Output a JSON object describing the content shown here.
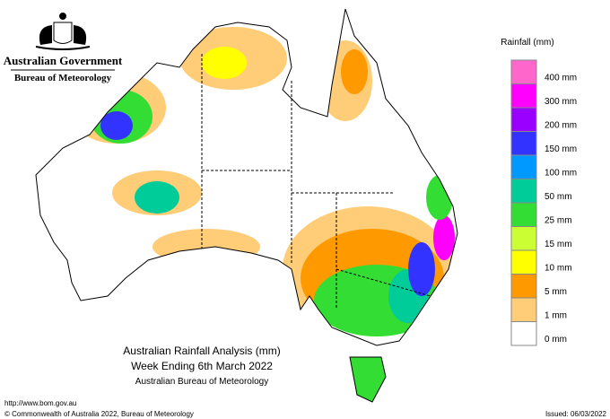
{
  "header": {
    "government": "Australian Government",
    "agency": "Bureau of Meteorology"
  },
  "title": {
    "line1": "Australian Rainfall Analysis (mm)",
    "line2": "Week Ending 6th March 2022",
    "line3": "Australian Bureau of Meteorology"
  },
  "legend": {
    "title": "Rainfall (mm)",
    "items": [
      {
        "label": "400 mm",
        "color": "#ff66cc"
      },
      {
        "label": "300 mm",
        "color": "#ff00ff"
      },
      {
        "label": "200 mm",
        "color": "#9900ff"
      },
      {
        "label": "150 mm",
        "color": "#3333ff"
      },
      {
        "label": "100 mm",
        "color": "#0099ff"
      },
      {
        "label": "50 mm",
        "color": "#00cc99"
      },
      {
        "label": "25 mm",
        "color": "#33dd33"
      },
      {
        "label": "15 mm",
        "color": "#ccff33"
      },
      {
        "label": "10 mm",
        "color": "#ffff00"
      },
      {
        "label": "5 mm",
        "color": "#ff9900"
      },
      {
        "label": "1 mm",
        "color": "#ffcc77"
      },
      {
        "label": "0 mm",
        "color": "#ffffff"
      }
    ]
  },
  "footer": {
    "url": "http://www.bom.gov.au",
    "copyright": "© Commonwealth of Australia 2022, Bureau of Meteorology",
    "issued": "Issued: 06/03/2022"
  }
}
